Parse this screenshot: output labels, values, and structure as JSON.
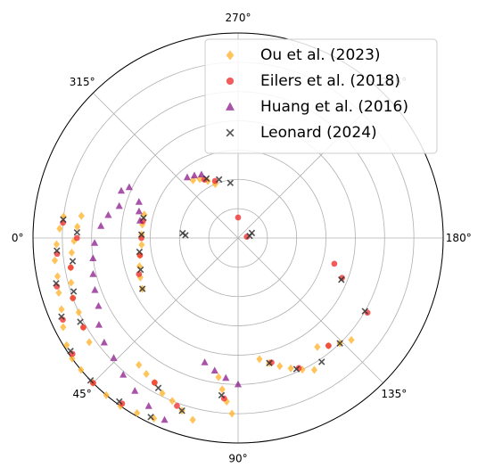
{
  "chart_data": {
    "type": "scatter",
    "projection": "polar",
    "theta_zero_location": "W",
    "theta_direction": "counter-clockwise with y-axis down (0° left, 90° bottom, 180° right, 270° top)",
    "theta_ticks": [
      "0°",
      "45°",
      "90°",
      "135°",
      "180°",
      "225°",
      "270°",
      "315°"
    ],
    "r_grid_rings": 7,
    "rlim": [
      0,
      7
    ],
    "grid": true,
    "legend_position": "top-right",
    "series": [
      {
        "name": "Ou et al. (2023)",
        "marker": "diamond",
        "color": "#FFB733",
        "points": [
          [
            353,
            6.0
          ],
          [
            357,
            6.1
          ],
          [
            2,
            6.2
          ],
          [
            7,
            6.3
          ],
          [
            12,
            6.3
          ],
          [
            17,
            6.4
          ],
          [
            22,
            6.5
          ],
          [
            27,
            6.7
          ],
          [
            32,
            6.9
          ],
          [
            36,
            7.0
          ],
          [
            40,
            7.0
          ],
          [
            45,
            7.0
          ],
          [
            50,
            7.0
          ],
          [
            55,
            7.0
          ],
          [
            60,
            6.9
          ],
          [
            65,
            6.8
          ],
          [
            352,
            5.4
          ],
          [
            356,
            5.5
          ],
          [
            1,
            5.6
          ],
          [
            5,
            5.7
          ],
          [
            10,
            5.8
          ],
          [
            15,
            5.9
          ],
          [
            20,
            6.0
          ],
          [
            25,
            6.0
          ],
          [
            30,
            6.1
          ],
          [
            35,
            6.2
          ],
          [
            346,
            3.3
          ],
          [
            352,
            3.3
          ],
          [
            358,
            3.3
          ],
          [
            4,
            3.3
          ],
          [
            10,
            3.4
          ],
          [
            16,
            3.5
          ],
          [
            22,
            3.6
          ],
          [
            28,
            3.7
          ],
          [
            52,
            5.5
          ],
          [
            56,
            5.6
          ],
          [
            60,
            5.7
          ],
          [
            64,
            5.9
          ],
          [
            68,
            6.0
          ],
          [
            72,
            6.2
          ],
          [
            76,
            6.4
          ],
          [
            82,
            4.8
          ],
          [
            84,
            5.2
          ],
          [
            86,
            5.6
          ],
          [
            88,
            6.0
          ],
          [
            100,
            4.2
          ],
          [
            104,
            4.4
          ],
          [
            108,
            4.6
          ],
          [
            112,
            4.8
          ],
          [
            116,
            5.0
          ],
          [
            120,
            5.2
          ],
          [
            126,
            4.6
          ],
          [
            130,
            4.8
          ],
          [
            134,
            5.0
          ],
          [
            138,
            5.2
          ],
          [
            293,
            2.0
          ],
          [
            298,
            2.2
          ],
          [
            303,
            2.4
          ],
          [
            308,
            2.5
          ]
        ]
      },
      {
        "name": "Eilers et al. (2018)",
        "marker": "circle",
        "color": "#EE3333",
        "points": [
          [
            355,
            6.0
          ],
          [
            5,
            6.2
          ],
          [
            15,
            6.4
          ],
          [
            25,
            6.6
          ],
          [
            35,
            6.9
          ],
          [
            45,
            7.0
          ],
          [
            55,
            6.9
          ],
          [
            0,
            5.5
          ],
          [
            10,
            5.8
          ],
          [
            20,
            6.0
          ],
          [
            30,
            6.1
          ],
          [
            350,
            3.3
          ],
          [
            0,
            3.3
          ],
          [
            10,
            3.4
          ],
          [
            20,
            3.6
          ],
          [
            60,
            5.7
          ],
          [
            70,
            6.1
          ],
          [
            85,
            5.5
          ],
          [
            105,
            4.4
          ],
          [
            115,
            4.9
          ],
          [
            130,
            4.8
          ],
          [
            159,
            3.8
          ],
          [
            165,
            3.4
          ],
          [
            270,
            0.7
          ],
          [
            292,
            2.1
          ],
          [
            300,
            2.3
          ],
          [
            150,
            5.1
          ],
          [
            188,
            0.3
          ]
        ]
      },
      {
        "name": "Huang et al. (2016)",
        "marker": "triangle",
        "color": "#8B1A8B",
        "points": [
          [
            345,
            4.2
          ],
          [
            350,
            4.5
          ],
          [
            355,
            4.7
          ],
          [
            2,
            4.9
          ],
          [
            8,
            5.0
          ],
          [
            14,
            5.1
          ],
          [
            20,
            5.2
          ],
          [
            26,
            5.3
          ],
          [
            32,
            5.6
          ],
          [
            38,
            5.8
          ],
          [
            44,
            5.9
          ],
          [
            50,
            6.1
          ],
          [
            56,
            6.3
          ],
          [
            62,
            6.5
          ],
          [
            68,
            6.7
          ],
          [
            340,
            3.6
          ],
          [
            345,
            3.5
          ],
          [
            350,
            3.4
          ],
          [
            300,
            2.5
          ],
          [
            305,
            2.6
          ],
          [
            310,
            2.7
          ],
          [
            335,
            4.1
          ],
          [
            338,
            4.3
          ],
          [
            75,
            4.4
          ],
          [
            80,
            4.6
          ],
          [
            85,
            4.8
          ],
          [
            90,
            5.0
          ]
        ]
      },
      {
        "name": "Leonard (2024)",
        "marker": "x",
        "color": "#333333",
        "points": [
          [
            354,
            6.0
          ],
          [
            4,
            6.2
          ],
          [
            14,
            6.4
          ],
          [
            24,
            6.6
          ],
          [
            34,
            6.9
          ],
          [
            44,
            7.0
          ],
          [
            54,
            6.9
          ],
          [
            64,
            6.8
          ],
          [
            358,
            5.5
          ],
          [
            8,
            5.7
          ],
          [
            18,
            5.9
          ],
          [
            28,
            6.1
          ],
          [
            348,
            3.3
          ],
          [
            358,
            3.3
          ],
          [
            8,
            3.4
          ],
          [
            18,
            3.5
          ],
          [
            28,
            3.7
          ],
          [
            355,
            1.9
          ],
          [
            357,
            1.8
          ],
          [
            62,
            5.8
          ],
          [
            72,
            6.2
          ],
          [
            84,
            5.4
          ],
          [
            104,
            4.4
          ],
          [
            114,
            4.9
          ],
          [
            124,
            5.1
          ],
          [
            134,
            5.0
          ],
          [
            150,
            5.0
          ],
          [
            158,
            3.8
          ],
          [
            278,
            1.9
          ],
          [
            288,
            2.1
          ],
          [
            298,
            2.3
          ],
          [
            190,
            0.4
          ],
          [
            200,
            0.5
          ]
        ]
      }
    ]
  }
}
